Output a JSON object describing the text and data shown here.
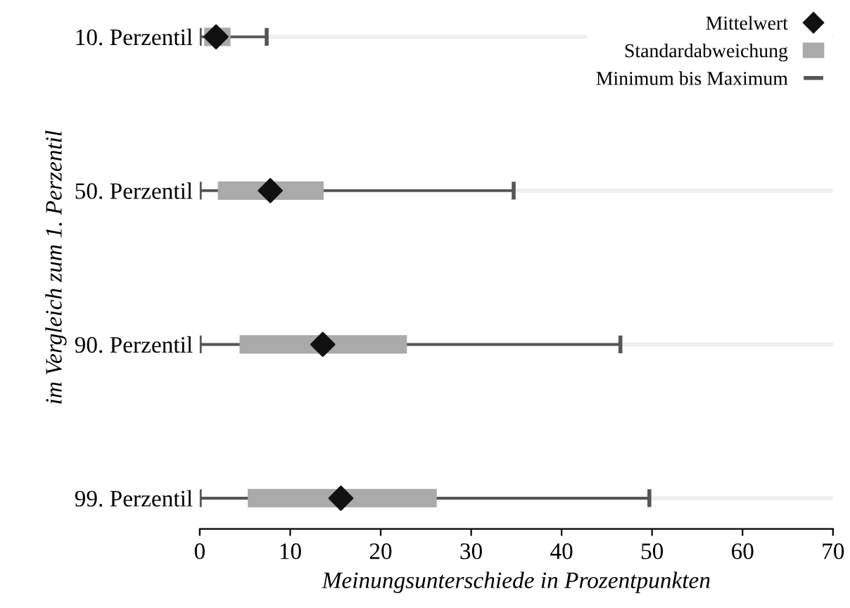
{
  "chart_data": {
    "type": "bar",
    "orientation": "horizontal",
    "categories": [
      "10. Perzentil",
      "50. Perzentil",
      "90. Perzentil",
      "99. Perzentil"
    ],
    "xlabel": "Meinungsunterschiede in Prozentpunkten",
    "ylabel": "im Vergleich zum 1. Perzentil",
    "xlim": [
      0,
      70
    ],
    "xticks": [
      0,
      10,
      20,
      30,
      40,
      50,
      60,
      70
    ],
    "grid": "y",
    "legend": "top right",
    "series": [
      {
        "name": "Mittelwert",
        "type": "scatter",
        "marker": "diamond",
        "color": "#111111",
        "values": [
          1.8,
          7.8,
          13.6,
          15.6
        ]
      },
      {
        "name": "Standardabweichung",
        "color": "#aaaaaa",
        "base": [
          0.5,
          2.0,
          4.4,
          5.3
        ],
        "values": [
          2.9,
          11.7,
          18.5,
          20.9
        ]
      },
      {
        "name": "Minimum bis Maximum",
        "color": "#555555",
        "base": [
          0,
          0,
          0,
          0
        ],
        "values": [
          7.4,
          34.7,
          46.5,
          49.7
        ]
      }
    ]
  }
}
